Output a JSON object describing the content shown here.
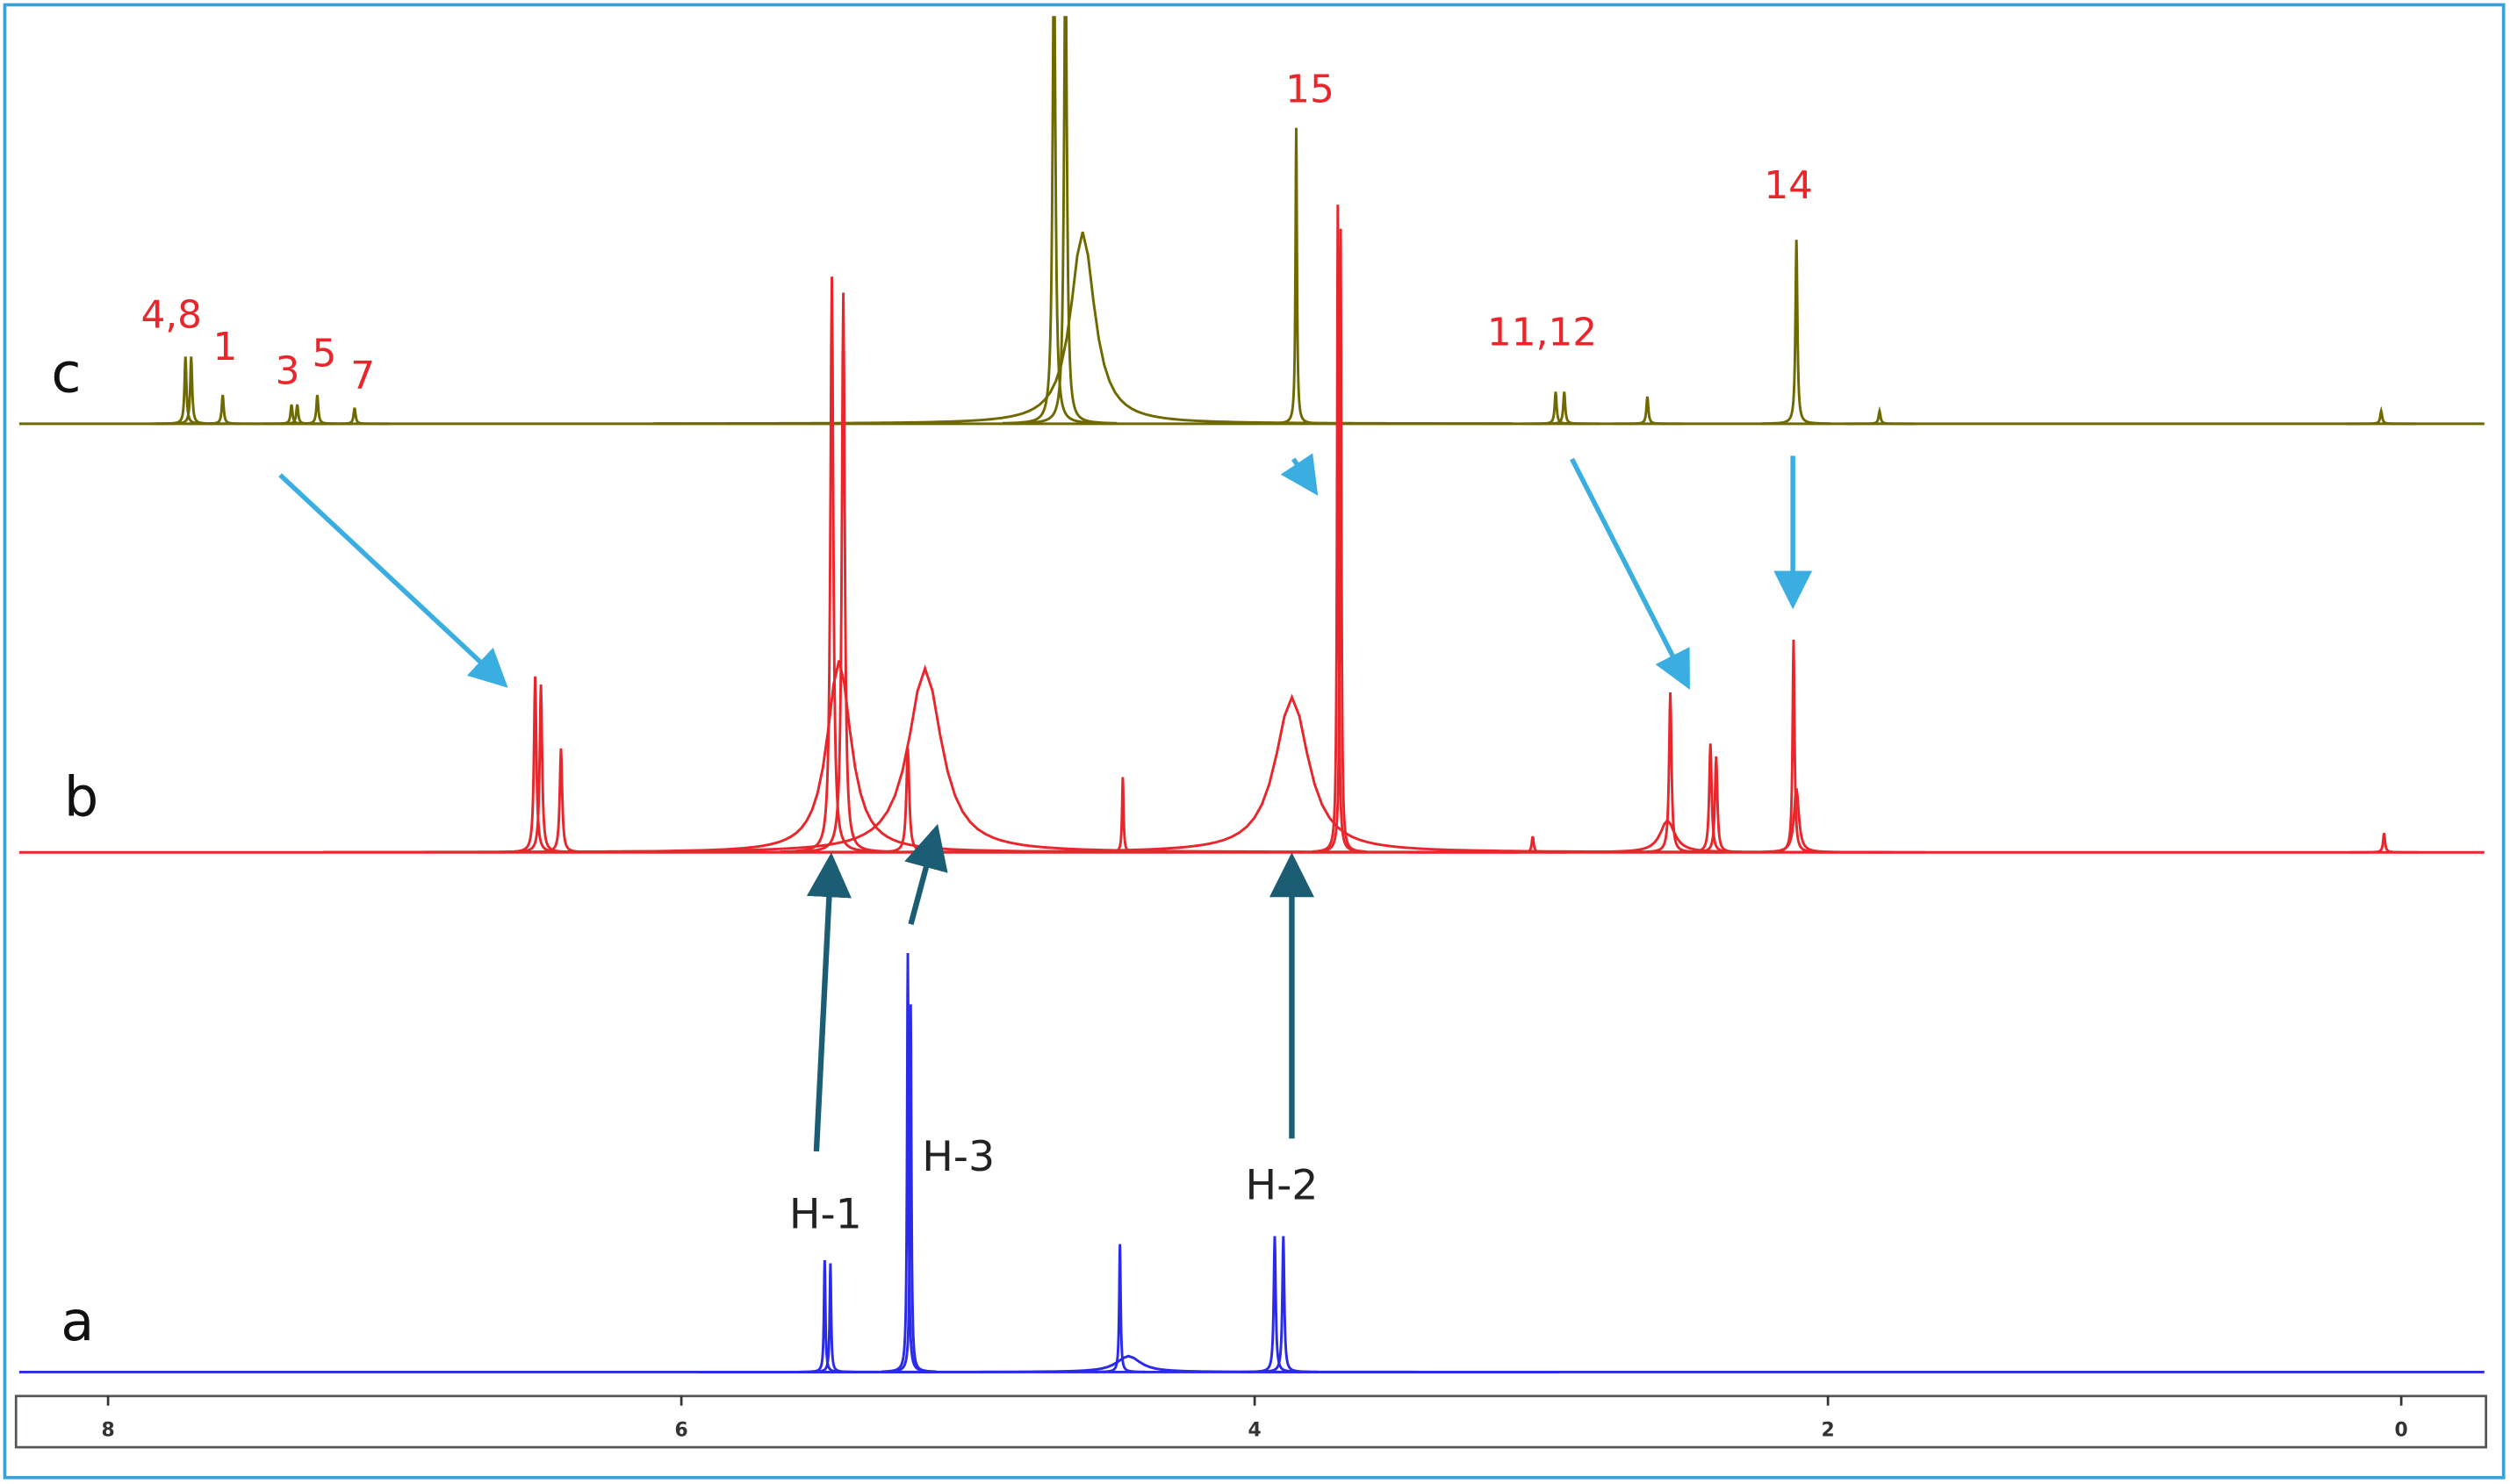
{
  "chart_data": {
    "type": "nmr",
    "xlim": [
      8.31,
      -0.29
    ],
    "xticks": [
      8,
      6,
      4,
      2,
      0
    ],
    "series": [
      {
        "name": "c",
        "color": "#6e6a00",
        "x": [
          7.73,
          7.71,
          7.6,
          7.36,
          7.34,
          7.27,
          7.14,
          4.7,
          4.66,
          4.6,
          3.855,
          2.95,
          2.92,
          2.63,
          2.11,
          1.82,
          0.07
        ],
        "values": [
          42,
          42,
          18,
          12,
          12,
          18,
          10,
          300,
          300,
          120,
          185,
          20,
          20,
          17,
          115,
          8,
          8
        ],
        "widths": [
          0.004,
          0.004,
          0.004,
          0.004,
          0.004,
          0.004,
          0.004,
          0.006,
          0.006,
          0.05,
          0.003,
          0.004,
          0.004,
          0.004,
          0.004,
          0.004,
          0.004
        ]
      },
      {
        "name": "b",
        "color": "#e8262b",
        "x": [
          6.51,
          6.49,
          6.42,
          5.475,
          5.435,
          5.45,
          5.21,
          5.15,
          4.46,
          3.87,
          3.71,
          3.7,
          3.03,
          2.55,
          2.56,
          2.41,
          2.39,
          2.12,
          2.11,
          0.06
        ],
        "values": [
          110,
          105,
          65,
          360,
          350,
          120,
          65,
          115,
          47,
          97,
          405,
          390,
          10,
          100,
          20,
          68,
          60,
          133,
          40,
          12
        ],
        "widths": [
          0.005,
          0.005,
          0.005,
          0.006,
          0.006,
          0.05,
          0.006,
          0.07,
          0.003,
          0.07,
          0.003,
          0.003,
          0.004,
          0.005,
          0.03,
          0.005,
          0.005,
          0.004,
          0.01,
          0.004
        ]
      },
      {
        "name": "a",
        "color": "#2a2ae8",
        "x": [
          5.5,
          5.48,
          5.21,
          5.2,
          4.47,
          4.44,
          3.93,
          3.9
        ],
        "values": [
          70,
          68,
          262,
          230,
          80,
          10,
          85,
          85
        ],
        "widths": [
          0.003,
          0.003,
          0.003,
          0.003,
          0.003,
          0.05,
          0.004,
          0.004
        ]
      }
    ],
    "annotations": [
      "4,8",
      "1",
      "3",
      "5",
      "7",
      "15",
      "11,12",
      "14",
      "H-1",
      "H-3",
      "H-2"
    ]
  }
}
